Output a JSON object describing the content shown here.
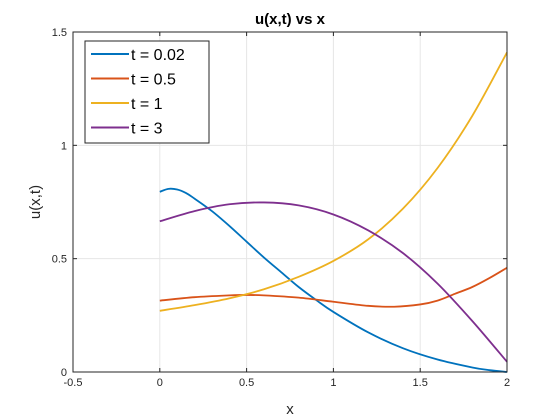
{
  "chart_data": {
    "type": "line",
    "title": "u(x,t) vs x",
    "xlabel": "x",
    "ylabel": "u(x,t)",
    "xlim": [
      -0.5,
      2
    ],
    "ylim": [
      0,
      1.5
    ],
    "xticks": [
      -0.5,
      0,
      0.5,
      1,
      1.5,
      2
    ],
    "xtick_labels": [
      "-0.5",
      "0",
      "0.5",
      "1",
      "1.5",
      "2"
    ],
    "yticks": [
      0,
      0.5,
      1,
      1.5
    ],
    "ytick_labels": [
      "0",
      "0.5",
      "1",
      "1.5"
    ],
    "grid": true,
    "legend_position": "top-left",
    "series": [
      {
        "name": "t = 0.02",
        "color": "#0072BD",
        "x": [
          0,
          0.05,
          0.1,
          0.15,
          0.2,
          0.3,
          0.4,
          0.5,
          0.6,
          0.7,
          0.8,
          0.9,
          1.0,
          1.2,
          1.4,
          1.6,
          1.8,
          1.9,
          2.0
        ],
        "y": [
          0.795,
          0.808,
          0.805,
          0.79,
          0.765,
          0.71,
          0.645,
          0.575,
          0.505,
          0.44,
          0.375,
          0.318,
          0.265,
          0.175,
          0.105,
          0.055,
          0.02,
          0.008,
          0.0
        ]
      },
      {
        "name": "t = 0.5",
        "color": "#D95319",
        "x": [
          0,
          0.2,
          0.4,
          0.5,
          0.6,
          0.8,
          1.0,
          1.2,
          1.35,
          1.5,
          1.6,
          1.7,
          1.8,
          1.9,
          2.0
        ],
        "y": [
          0.315,
          0.33,
          0.338,
          0.34,
          0.338,
          0.328,
          0.31,
          0.292,
          0.288,
          0.298,
          0.315,
          0.345,
          0.375,
          0.415,
          0.46
        ]
      },
      {
        "name": "t = 1",
        "color": "#EDB120",
        "x": [
          0,
          0.2,
          0.4,
          0.6,
          0.8,
          1.0,
          1.2,
          1.4,
          1.6,
          1.8,
          2.0
        ],
        "y": [
          0.27,
          0.295,
          0.325,
          0.365,
          0.42,
          0.49,
          0.585,
          0.72,
          0.9,
          1.13,
          1.41
        ]
      },
      {
        "name": "t = 3",
        "color": "#7E2F8E",
        "x": [
          0,
          0.2,
          0.4,
          0.6,
          0.8,
          1.0,
          1.2,
          1.4,
          1.6,
          1.8,
          2.0
        ],
        "y": [
          0.665,
          0.71,
          0.74,
          0.748,
          0.735,
          0.695,
          0.625,
          0.525,
          0.39,
          0.225,
          0.045
        ]
      }
    ]
  }
}
